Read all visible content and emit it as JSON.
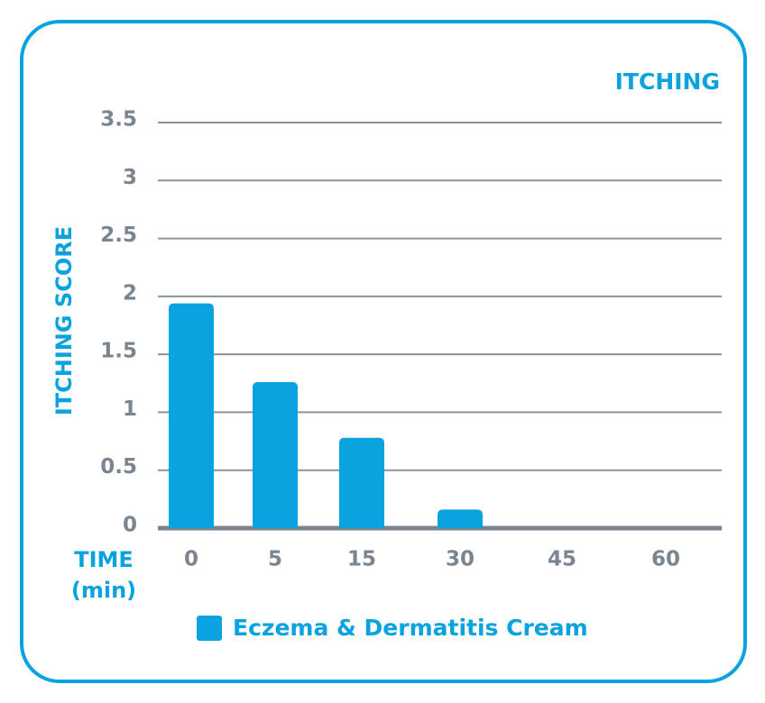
{
  "chart_data": {
    "type": "bar",
    "title": "ITCHING",
    "y_label": "ITCHING SCORE",
    "x_label": "TIME (min)",
    "categories": [
      "0",
      "5",
      "15",
      "30",
      "45",
      "60"
    ],
    "series": [
      {
        "name": "Eczema & Dermatitis Cream",
        "color": "#0aa3df",
        "values": [
          1.94,
          1.26,
          0.78,
          0.16,
          0,
          0
        ]
      }
    ],
    "ylim": [
      0,
      3.5
    ],
    "yticks": [
      0,
      0.5,
      1,
      1.5,
      2,
      2.5,
      3,
      3.5
    ],
    "grid": true,
    "legend": "bottom"
  }
}
